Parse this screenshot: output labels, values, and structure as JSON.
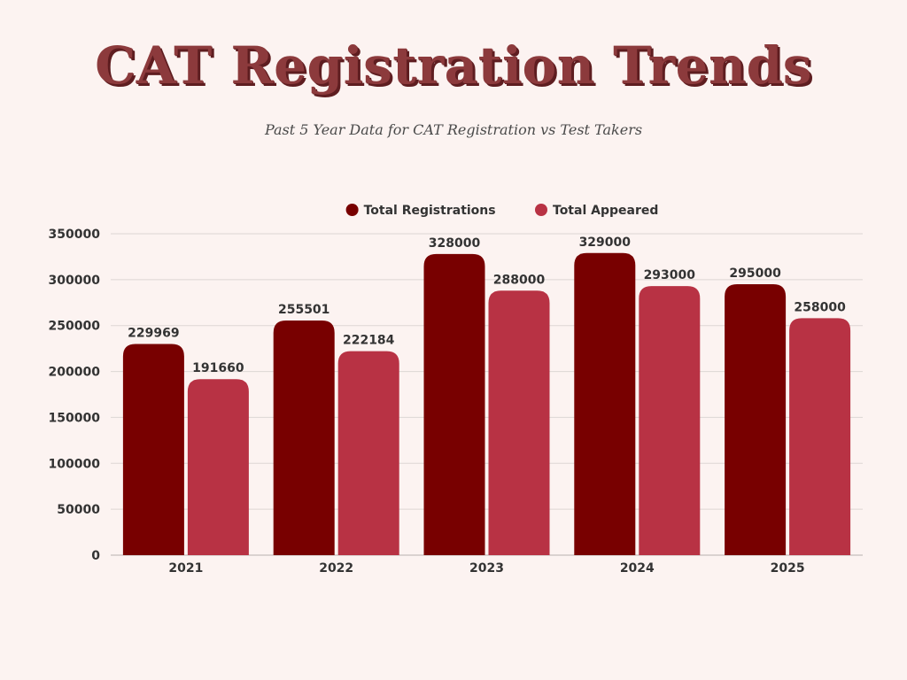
{
  "chart_data": {
    "type": "bar",
    "title": "CAT Registration Trends",
    "subtitle": "Past 5 Year Data for CAT Registration vs Test Takers",
    "categories": [
      "2021",
      "2022",
      "2023",
      "2024",
      "2025"
    ],
    "series": [
      {
        "name": "Total Registrations",
        "color": "#780000",
        "values": [
          229969,
          255501,
          328000,
          329000,
          295000
        ]
      },
      {
        "name": "Total Appeared",
        "color": "#b83244",
        "values": [
          191660,
          222184,
          288000,
          293000,
          258000
        ]
      }
    ],
    "ylim": [
      0,
      350000
    ],
    "yticks": [
      0,
      50000,
      100000,
      150000,
      200000,
      250000,
      300000,
      350000
    ],
    "grid": true,
    "legend": "top-center",
    "data_labels": true
  }
}
